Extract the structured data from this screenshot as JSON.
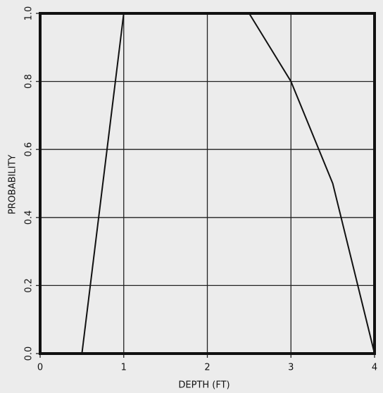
{
  "chart_data": {
    "type": "line",
    "xlabel": "DEPTH (FT)",
    "ylabel": "PROBABILITY",
    "series": [
      {
        "color": "#111111",
        "x": [
          0.5,
          1
        ],
        "values": [
          0,
          1
        ]
      },
      {
        "color": "#111111",
        "x": [
          2.5,
          3,
          3.5,
          4
        ],
        "values": [
          1,
          0.8,
          0.5,
          0
        ]
      }
    ],
    "xlim": [
      0,
      4
    ],
    "ylim": [
      0,
      1
    ],
    "xticks": [
      0,
      1,
      2,
      3,
      4
    ],
    "yticks": [
      {
        "value": 0,
        "label": "0.0"
      },
      0.2,
      0.4,
      0.6,
      0.8,
      {
        "value": 1,
        "label": "1.0"
      }
    ],
    "grid": true
  }
}
